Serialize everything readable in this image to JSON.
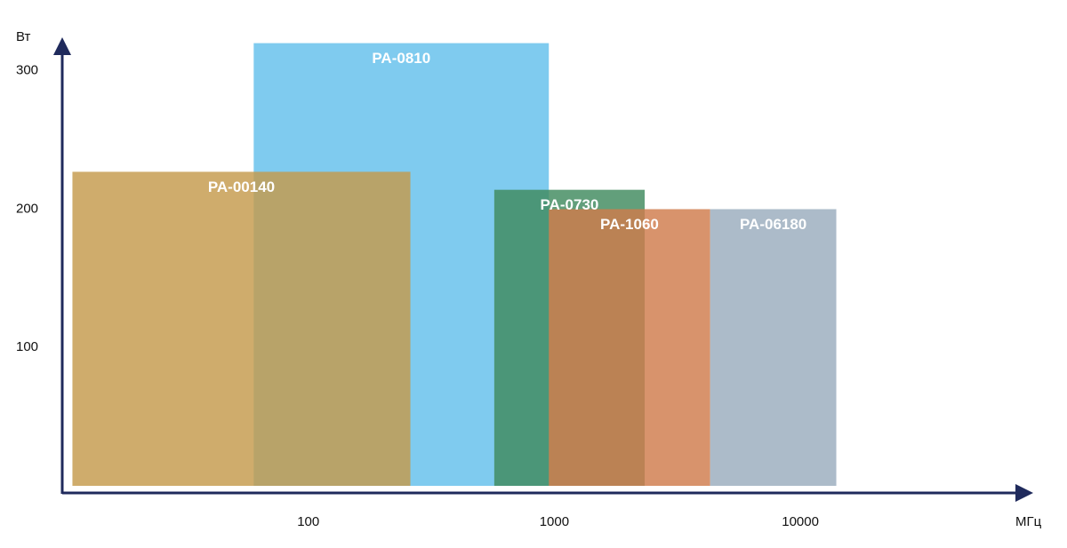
{
  "chart_data": {
    "type": "bar",
    "x_label": "МГц",
    "y_label": "Вт",
    "xscale": "log",
    "xlim": [
      10,
      80000
    ],
    "xticks": [
      100,
      1000,
      10000
    ],
    "ylim": [
      0,
      330
    ],
    "yticks": [
      100,
      200,
      300
    ],
    "axis_color": "#1f2a5c",
    "series": [
      {
        "name": "PA-0810",
        "color": "#63bfeb",
        "x": [
          60,
          950
        ],
        "value": 320
      },
      {
        "name": "PA-00140",
        "color": "#c59a4c",
        "x": [
          11,
          260
        ],
        "value": 227
      },
      {
        "name": "PA-0730",
        "color": "#3f8a5e",
        "x": [
          570,
          2330
        ],
        "value": 214
      },
      {
        "name": "PA-1060",
        "color": "#cf7b4c",
        "x": [
          950,
          4300
        ],
        "value": 200
      },
      {
        "name": "PA-06180",
        "color": "#9aacbd",
        "x": [
          4300,
          14000
        ],
        "value": 200
      }
    ]
  }
}
